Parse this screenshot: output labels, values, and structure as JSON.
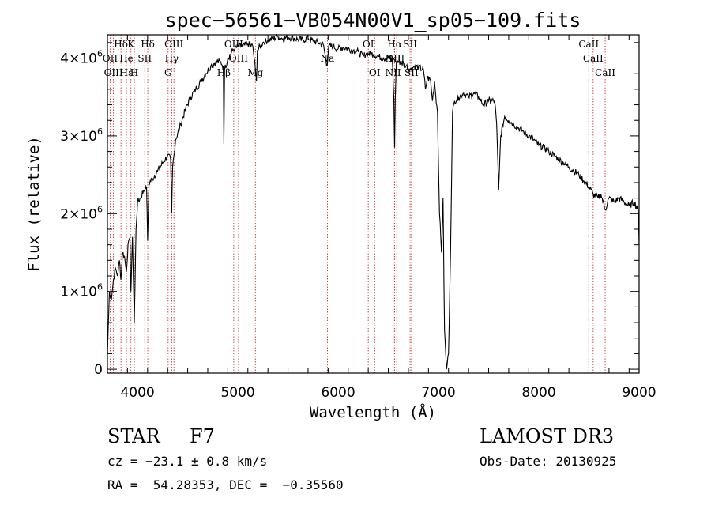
{
  "chart_data": {
    "type": "line",
    "title": "spec−56561−VB054N00V1_sp05−109.fits",
    "xlabel": "Wavelength (Å)",
    "ylabel": "Flux (relative)",
    "xlim": [
      3700,
      9000
    ],
    "ylim": [
      -50000,
      4300000
    ],
    "x_ticks": [
      {
        "value": 4000,
        "label": "4000"
      },
      {
        "value": 5000,
        "label": "5000"
      },
      {
        "value": 6000,
        "label": "6000"
      },
      {
        "value": 7000,
        "label": "7000"
      },
      {
        "value": 8000,
        "label": "8000"
      },
      {
        "value": 9000,
        "label": "9000"
      }
    ],
    "y_ticks": [
      {
        "value": 0,
        "label": "0",
        "exp": ""
      },
      {
        "value": 1000000,
        "label": "1×10",
        "exp": "6"
      },
      {
        "value": 2000000,
        "label": "2×10",
        "exp": "6"
      },
      {
        "value": 3000000,
        "label": "3×10",
        "exp": "6"
      },
      {
        "value": 4000000,
        "label": "4×10",
        "exp": "6"
      }
    ],
    "series": [
      {
        "name": "flux",
        "points": [
          [
            3700,
            200000
          ],
          [
            3720,
            1000000
          ],
          [
            3740,
            900000
          ],
          [
            3760,
            1150000
          ],
          [
            3780,
            1300000
          ],
          [
            3800,
            1200000
          ],
          [
            3820,
            1400000
          ],
          [
            3835,
            1150000
          ],
          [
            3850,
            1500000
          ],
          [
            3870,
            1450000
          ],
          [
            3889,
            1250000
          ],
          [
            3905,
            1600000
          ],
          [
            3925,
            1650000
          ],
          [
            3934,
            1000000
          ],
          [
            3950,
            1700000
          ],
          [
            3968,
            600000
          ],
          [
            3985,
            1800000
          ],
          [
            4000,
            2150000
          ],
          [
            4030,
            2200000
          ],
          [
            4060,
            2300000
          ],
          [
            4090,
            2350000
          ],
          [
            4101,
            1650000
          ],
          [
            4115,
            2400000
          ],
          [
            4150,
            2450000
          ],
          [
            4200,
            2550000
          ],
          [
            4250,
            2650000
          ],
          [
            4300,
            2750000
          ],
          [
            4330,
            2700000
          ],
          [
            4340,
            2000000
          ],
          [
            4350,
            2600000
          ],
          [
            4380,
            2950000
          ],
          [
            4430,
            3150000
          ],
          [
            4480,
            3350000
          ],
          [
            4530,
            3500000
          ],
          [
            4580,
            3600000
          ],
          [
            4630,
            3700000
          ],
          [
            4680,
            3800000
          ],
          [
            4730,
            3900000
          ],
          [
            4780,
            3950000
          ],
          [
            4830,
            3950000
          ],
          [
            4855,
            3900000
          ],
          [
            4861,
            2900000
          ],
          [
            4868,
            3850000
          ],
          [
            4900,
            4000000
          ],
          [
            4950,
            4100000
          ],
          [
            5000,
            4150000
          ],
          [
            5050,
            4150000
          ],
          [
            5100,
            4180000
          ],
          [
            5150,
            4150000
          ],
          [
            5175,
            3850000
          ],
          [
            5185,
            3700000
          ],
          [
            5195,
            4100000
          ],
          [
            5250,
            4200000
          ],
          [
            5300,
            4230000
          ],
          [
            5350,
            4250000
          ],
          [
            5400,
            4280000
          ],
          [
            5450,
            4250000
          ],
          [
            5500,
            4270000
          ],
          [
            5550,
            4260000
          ],
          [
            5600,
            4240000
          ],
          [
            5650,
            4230000
          ],
          [
            5700,
            4260000
          ],
          [
            5750,
            4220000
          ],
          [
            5800,
            4200000
          ],
          [
            5850,
            4180000
          ],
          [
            5890,
            3900000
          ],
          [
            5905,
            4150000
          ],
          [
            5950,
            4150000
          ],
          [
            6000,
            4120000
          ],
          [
            6050,
            4140000
          ],
          [
            6100,
            4120000
          ],
          [
            6150,
            4100000
          ],
          [
            6200,
            4080000
          ],
          [
            6250,
            4020000
          ],
          [
            6280,
            4060000
          ],
          [
            6350,
            4050000
          ],
          [
            6400,
            4020000
          ],
          [
            6450,
            4000000
          ],
          [
            6500,
            4000000
          ],
          [
            6540,
            3980000
          ],
          [
            6555,
            3500000
          ],
          [
            6563,
            2850000
          ],
          [
            6570,
            3500000
          ],
          [
            6580,
            3950000
          ],
          [
            6620,
            3950000
          ],
          [
            6680,
            3900000
          ],
          [
            6720,
            3850000
          ],
          [
            6760,
            3900000
          ],
          [
            6800,
            3880000
          ],
          [
            6850,
            3850000
          ],
          [
            6870,
            3600000
          ],
          [
            6890,
            3750000
          ],
          [
            6920,
            3720000
          ],
          [
            6940,
            3450000
          ],
          [
            6960,
            3700000
          ],
          [
            6990,
            3300000
          ],
          [
            7010,
            2000000
          ],
          [
            7030,
            1500000
          ],
          [
            7045,
            2200000
          ],
          [
            7060,
            500000
          ],
          [
            7080,
            0
          ],
          [
            7100,
            200000
          ],
          [
            7120,
            1500000
          ],
          [
            7140,
            3300000
          ],
          [
            7160,
            3450000
          ],
          [
            7200,
            3500000
          ],
          [
            7250,
            3550000
          ],
          [
            7300,
            3500000
          ],
          [
            7350,
            3550000
          ],
          [
            7400,
            3500000
          ],
          [
            7450,
            3400000
          ],
          [
            7500,
            3450000
          ],
          [
            7560,
            3450000
          ],
          [
            7580,
            3150000
          ],
          [
            7600,
            2300000
          ],
          [
            7620,
            3000000
          ],
          [
            7660,
            3250000
          ],
          [
            7700,
            3200000
          ],
          [
            7750,
            3150000
          ],
          [
            7800,
            3100000
          ],
          [
            7850,
            3050000
          ],
          [
            7900,
            3000000
          ],
          [
            7950,
            2950000
          ],
          [
            8000,
            2880000
          ],
          [
            8050,
            2850000
          ],
          [
            8100,
            2800000
          ],
          [
            8150,
            2750000
          ],
          [
            8200,
            2700000
          ],
          [
            8250,
            2650000
          ],
          [
            8300,
            2600000
          ],
          [
            8350,
            2550000
          ],
          [
            8400,
            2500000
          ],
          [
            8450,
            2420000
          ],
          [
            8498,
            2350000
          ],
          [
            8542,
            2250000
          ],
          [
            8590,
            2200000
          ],
          [
            8620,
            2250000
          ],
          [
            8662,
            2050000
          ],
          [
            8700,
            2200000
          ],
          [
            8750,
            2150000
          ],
          [
            8800,
            2200000
          ],
          [
            8850,
            2150000
          ],
          [
            8900,
            2100000
          ],
          [
            8950,
            2150000
          ],
          [
            8990,
            2050000
          ],
          [
            9000,
            1600000
          ]
        ]
      }
    ],
    "lines": [
      {
        "name": "Hδ",
        "w": 3835,
        "row": 0
      },
      {
        "name": "OII",
        "w": 3727,
        "row": 1
      },
      {
        "name": "OIII",
        "w": 3760,
        "row": 2
      },
      {
        "name": "K",
        "w": 3934,
        "row": 0
      },
      {
        "name": "He",
        "w": 3889,
        "row": 1
      },
      {
        "name": "Hε",
        "w": 3889,
        "row": 2
      },
      {
        "name": "H",
        "w": 3968,
        "row": 2
      },
      {
        "name": "SII",
        "w": 4072,
        "row": 1
      },
      {
        "name": "Hδ",
        "w": 4102,
        "row": 0
      },
      {
        "name": "OIII",
        "w": 4363,
        "row": 0
      },
      {
        "name": "Hγ",
        "w": 4341,
        "row": 1
      },
      {
        "name": "G",
        "w": 4305,
        "row": 2
      },
      {
        "name": "OIII",
        "w": 4959,
        "row": 0
      },
      {
        "name": "OIII",
        "w": 5007,
        "row": 1
      },
      {
        "name": "Hβ",
        "w": 4861,
        "row": 2
      },
      {
        "name": "Mg",
        "w": 5175,
        "row": 2
      },
      {
        "name": "Na",
        "w": 5893,
        "row": 1
      },
      {
        "name": "OI",
        "w": 6300,
        "row": 0
      },
      {
        "name": "OI",
        "w": 6364,
        "row": 2
      },
      {
        "name": "Hα",
        "w": 6563,
        "row": 0
      },
      {
        "name": "SII",
        "w": 6717,
        "row": 0
      },
      {
        "name": "NII",
        "w": 6548,
        "row": 1
      },
      {
        "name": "NII",
        "w": 6584,
        "row": 1
      },
      {
        "name": "NII",
        "w": 6548,
        "row": 2
      },
      {
        "name": "SII",
        "w": 6731,
        "row": 2
      },
      {
        "name": "CaII",
        "w": 8498,
        "row": 0
      },
      {
        "name": "CaII",
        "w": 8542,
        "row": 1
      },
      {
        "name": "CaII",
        "w": 8662,
        "row": 2
      }
    ]
  },
  "footer": {
    "class_label": "STAR",
    "subclass": "F7",
    "survey": "LAMOST DR3",
    "cz": "cz = −23.1 ± 0.8 km/s",
    "obs_date": "Obs-Date: 20130925",
    "coords": "RA =  54.28353, DEC =  −0.35560"
  }
}
